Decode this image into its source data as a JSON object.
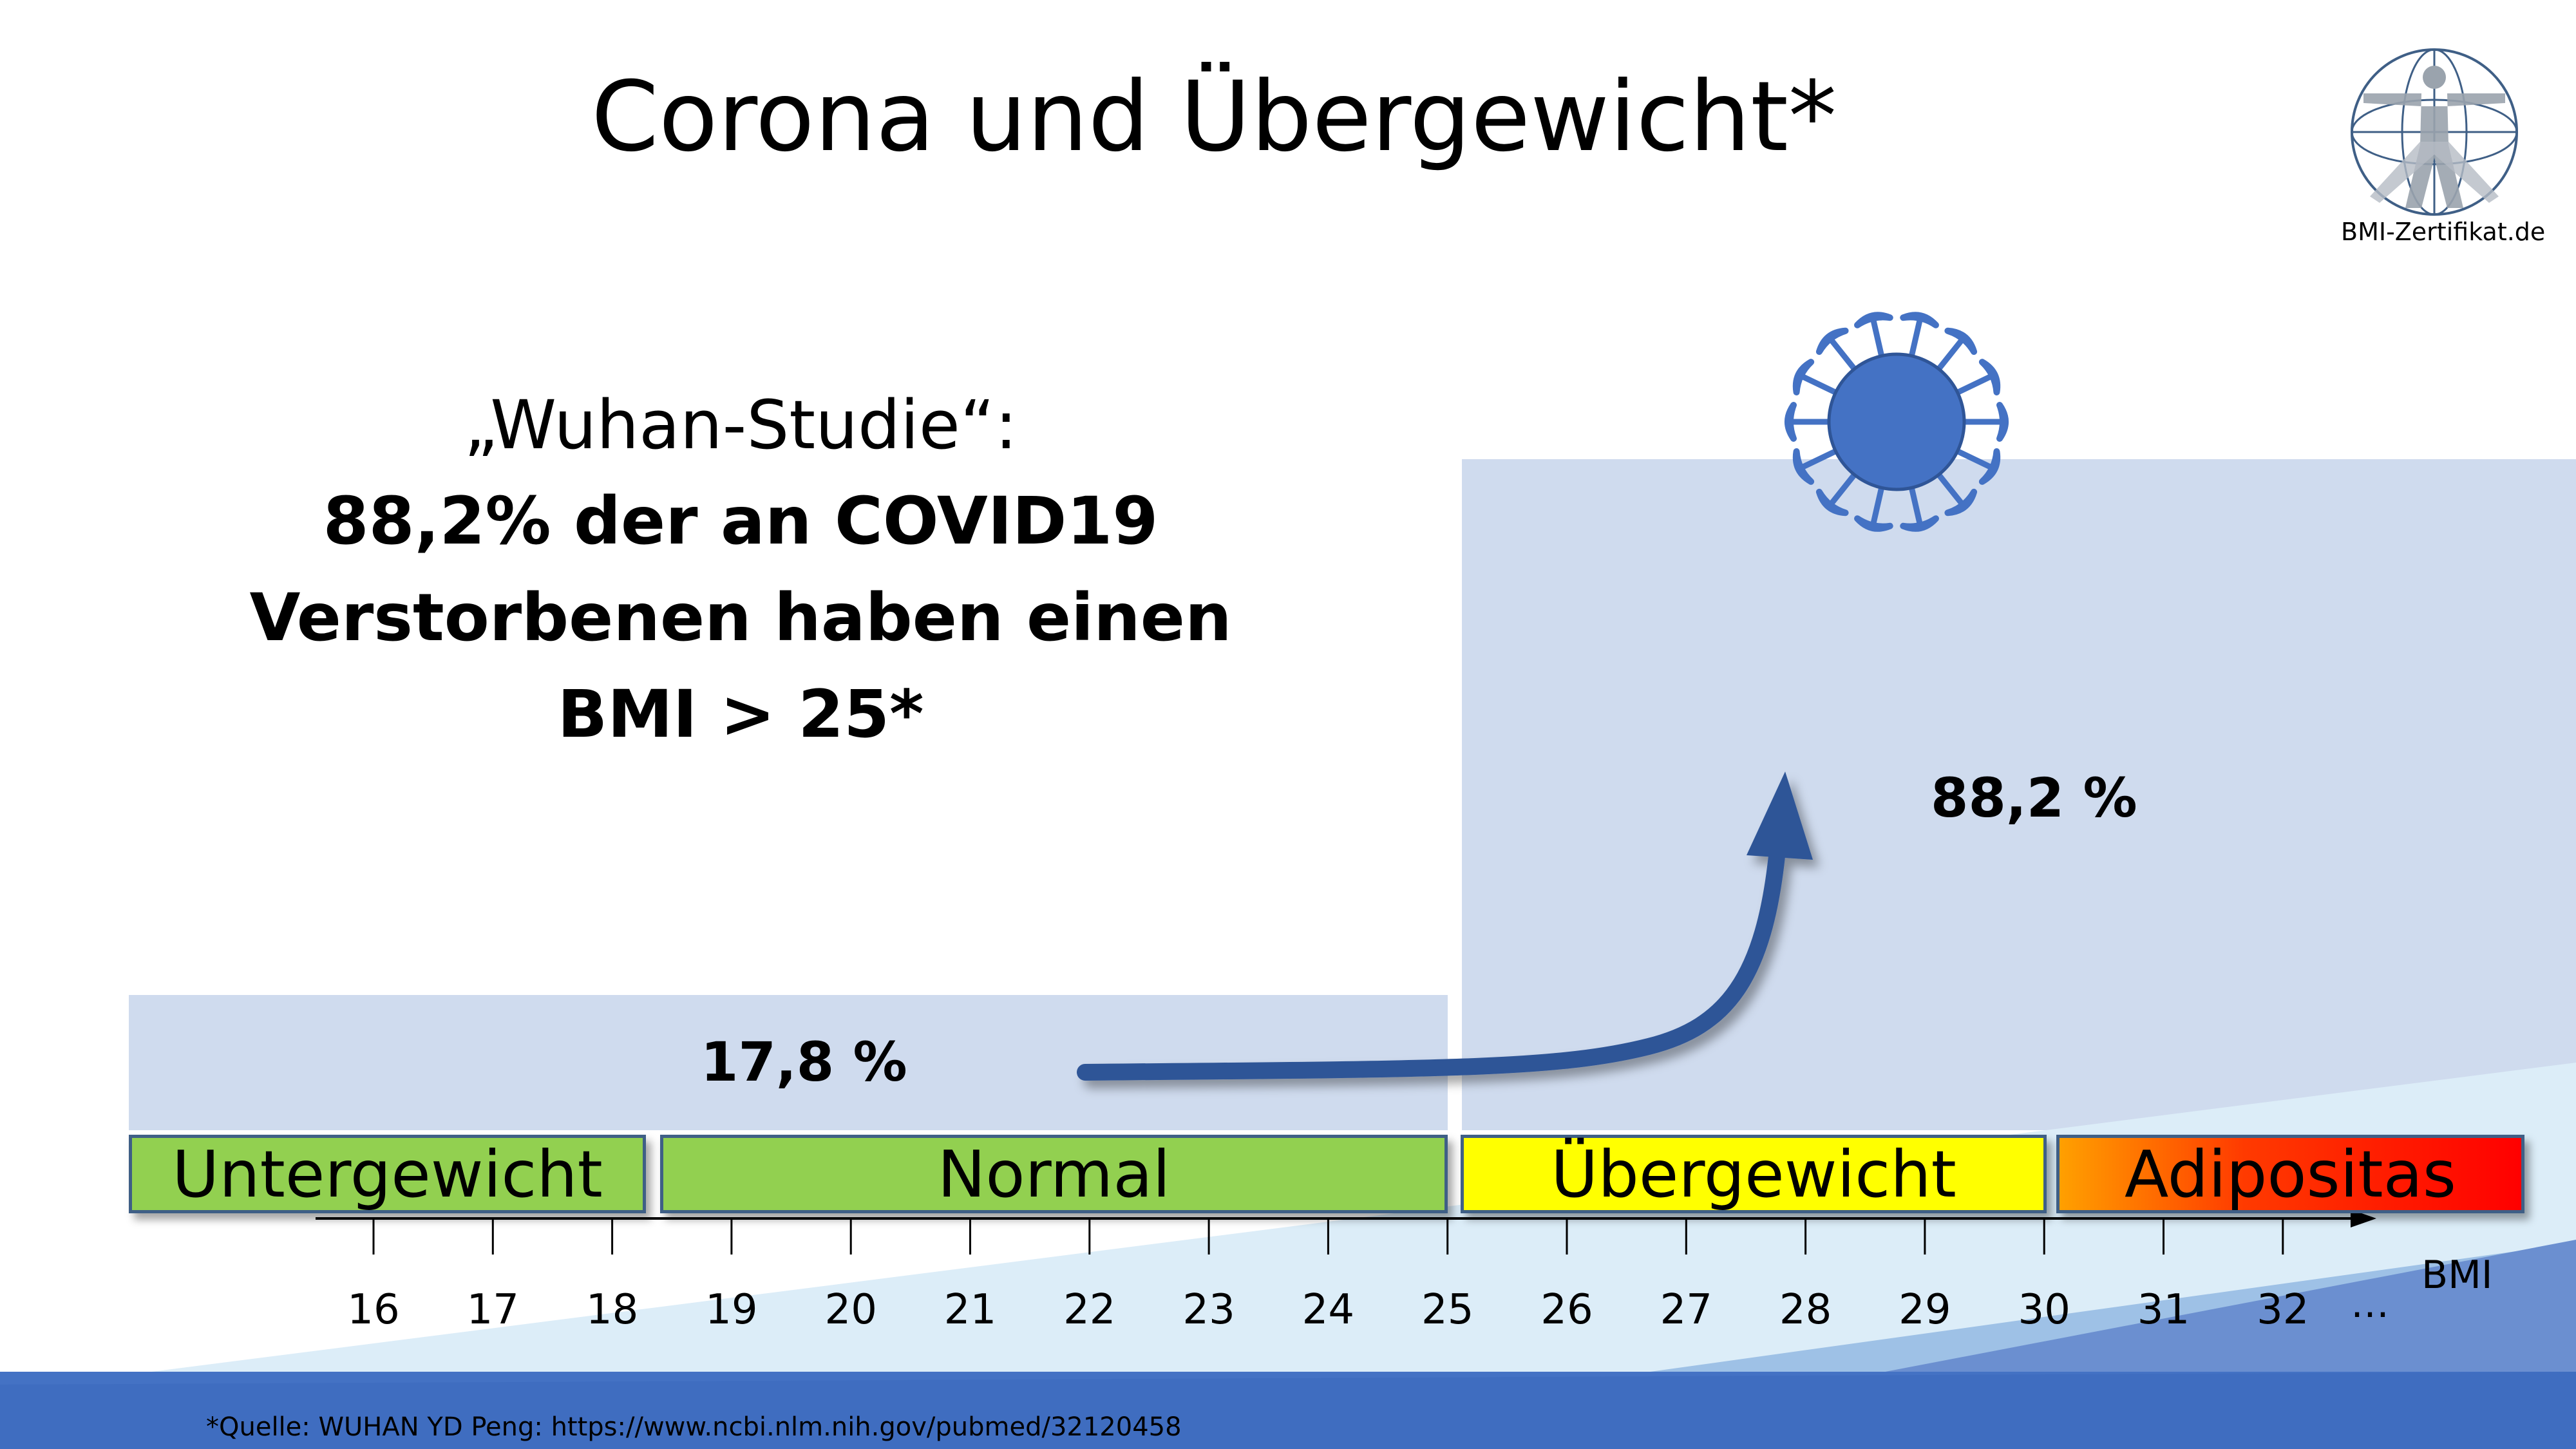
{
  "title": "Corona und Übergewicht*",
  "logo": {
    "text": "BMI-Zertifikat.de"
  },
  "study": {
    "line1": "„Wuhan-Studie“:",
    "line2": "88,2% der an COVID19",
    "line3": "Verstorbenen haben einen",
    "line4": "BMI > 25*"
  },
  "percentages": {
    "low": "17,8 %",
    "high": "88,2 %"
  },
  "categories": [
    "Untergewicht",
    "Normal",
    "Übergewicht",
    "Adipositas"
  ],
  "axis": {
    "ticks": [
      "16",
      "17",
      "18",
      "19",
      "20",
      "21",
      "22",
      "23",
      "24",
      "25",
      "26",
      "27",
      "28",
      "29",
      "30",
      "31",
      "32"
    ],
    "ellipsis": "…",
    "unit": "BMI"
  },
  "source": "*Quelle: WUHAN YD Peng: https://www.ncbi.nlm.nih.gov/pubmed/32120458",
  "colors": {
    "panel": "#cfdbee",
    "green": "#92d050",
    "yellow": "#ffff00",
    "red": "#ff0000",
    "orange": "#ffa000",
    "arrow": "#2f5597",
    "virus": "#4472c4",
    "band_dark": "#4472c4"
  }
}
